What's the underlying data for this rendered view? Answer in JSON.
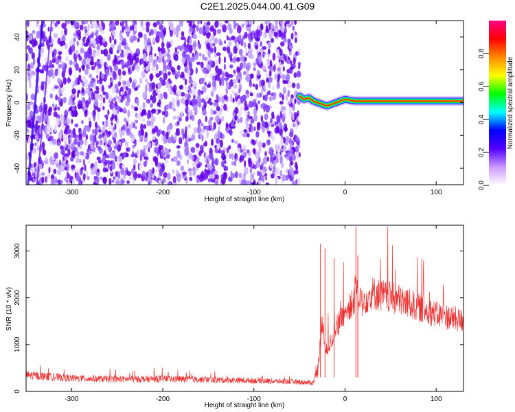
{
  "title": "C2E1.2025.044.00.41.G09",
  "colors": {
    "series": "#ee3333",
    "noise": "#6a00ee",
    "axis": "#000000",
    "colormap": [
      "#ffffff",
      "#cc99ff",
      "#5500ff",
      "#0000ff",
      "#00ffff",
      "#00ff00",
      "#ffff00",
      "#ff8800",
      "#ff0000",
      "#ff0088"
    ]
  },
  "chart_data": [
    {
      "type": "heatmap",
      "xlabel": "Height of straight line (km)",
      "ylabel": "Frequency (Hz)",
      "xlim": [
        -350,
        130
      ],
      "ylim": [
        -50,
        50
      ],
      "xticks": [
        "-300",
        "-200",
        "-100",
        "0",
        "100"
      ],
      "yticks": [
        "-40",
        "-20",
        "0",
        "20",
        "40"
      ],
      "colorbar": {
        "label": "Normalized spectral amplitude",
        "range": [
          0,
          1
        ],
        "ticks": [
          "0.0",
          "0.2",
          "0.4",
          "0.6",
          "0.8"
        ]
      },
      "noise_region": {
        "x_from": -350,
        "x_to": -50
      },
      "signal_track": {
        "x": [
          -50,
          -45,
          -40,
          -35,
          -30,
          -25,
          -20,
          -15,
          -10,
          -5,
          0,
          10,
          20,
          40,
          60,
          80,
          100,
          130
        ],
        "y": [
          4,
          2,
          3,
          1,
          0,
          -1,
          -2,
          -1,
          0,
          1,
          2,
          1,
          1,
          1,
          1,
          1,
          1,
          1
        ]
      }
    },
    {
      "type": "line",
      "xlabel": "Height of straight line (km)",
      "ylabel": "SNR (10 * v/v)",
      "xlim": [
        -350,
        130
      ],
      "ylim": [
        0,
        3550
      ],
      "xticks": [
        "-300",
        "-200",
        "-100",
        "0",
        "100"
      ],
      "yticks": [
        "0",
        "1000",
        "2000",
        "3000"
      ],
      "series": [
        {
          "x": [
            -350,
            -300,
            -250,
            -200,
            -150,
            -100,
            -50,
            -35,
            -30,
            -25,
            -20,
            -15,
            -10,
            -5,
            0,
            5,
            10,
            12,
            15,
            20,
            30,
            40,
            60,
            80,
            100,
            130
          ],
          "y": [
            350,
            280,
            260,
            270,
            250,
            230,
            200,
            180,
            500,
            1400,
            800,
            1100,
            1400,
            1500,
            1700,
            1800,
            1900,
            2500,
            1900,
            1950,
            2100,
            2050,
            1950,
            1800,
            1650,
            1500
          ]
        }
      ]
    }
  ]
}
